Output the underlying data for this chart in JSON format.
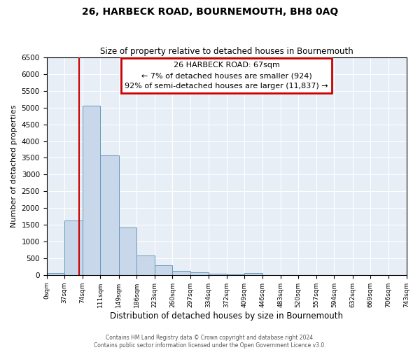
{
  "title": "26, HARBECK ROAD, BOURNEMOUTH, BH8 0AQ",
  "subtitle": "Size of property relative to detached houses in Bournemouth",
  "xlabel": "Distribution of detached houses by size in Bournemouth",
  "ylabel": "Number of detached properties",
  "bar_color": "#c8d8ea",
  "bar_edge_color": "#6699bb",
  "background_color": "#e8eef6",
  "grid_color": "#ffffff",
  "annotation_box_color": "#cc0000",
  "vline_color": "#cc0000",
  "vline_x": 67,
  "annotation_line1": "26 HARBECK ROAD: 67sqm",
  "annotation_line2": "← 7% of detached houses are smaller (924)",
  "annotation_line3": "92% of semi-detached houses are larger (11,837) →",
  "bin_edges": [
    0,
    37,
    74,
    111,
    149,
    186,
    223,
    260,
    297,
    334,
    372,
    409,
    446,
    483,
    520,
    557,
    594,
    632,
    669,
    706,
    743
  ],
  "bin_counts": [
    50,
    1620,
    5050,
    3580,
    1420,
    590,
    295,
    130,
    75,
    30,
    10,
    50,
    5,
    5,
    5,
    5,
    5,
    5,
    5,
    5
  ],
  "ylim": [
    0,
    6500
  ],
  "yticks": [
    0,
    500,
    1000,
    1500,
    2000,
    2500,
    3000,
    3500,
    4000,
    4500,
    5000,
    5500,
    6000,
    6500
  ],
  "footer_line1": "Contains HM Land Registry data © Crown copyright and database right 2024.",
  "footer_line2": "Contains public sector information licensed under the Open Government Licence v3.0."
}
